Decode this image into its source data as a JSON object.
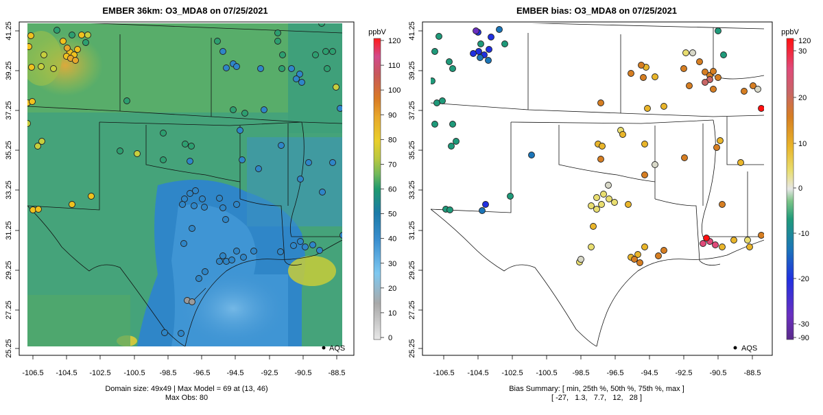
{
  "left_panel": {
    "title": "EMBER 36km: O3_MDA8 on 07/25/2021",
    "unit": "ppbV",
    "footer_line1": "Domain size: 49x49 | Max Model = 69 at (13, 46)",
    "footer_line2": "Max Obs: 80",
    "legend_label": "AQS",
    "colorbar_ticks": [
      "120",
      "110",
      "100",
      "90",
      "80",
      "70",
      "60",
      "50",
      "40",
      "30",
      "20",
      "10",
      "0"
    ],
    "colorbar_values": [
      120,
      110,
      100,
      90,
      80,
      70,
      60,
      50,
      40,
      30,
      20,
      10,
      0
    ],
    "colorbar_range": [
      0,
      120
    ]
  },
  "right_panel": {
    "title": "EMBER bias: O3_MDA8 on 07/25/2021",
    "unit": "ppbV",
    "footer_line1": "Bias Summary: [ min, 25th %, 50th %, 75th %, max ]",
    "footer_line2": "[ -27,   1.3,   7.7,   12,   28 ]",
    "legend_label": "AQS",
    "colorbar_ticks": [
      "120",
      "30",
      "20",
      "10",
      "0",
      "-10",
      "-20",
      "-30",
      "-90"
    ]
  },
  "axes": {
    "x_ticks": [
      "-106.5",
      "-104.5",
      "-102.5",
      "-100.5",
      "-98.5",
      "-96.5",
      "-94.5",
      "-92.5",
      "-90.5",
      "-88.5"
    ],
    "y_ticks": [
      "41.25",
      "39.25",
      "37.25",
      "35.25",
      "33.25",
      "31.25",
      "29.25",
      "27.25",
      "25.25"
    ],
    "x_range": [
      -107.5,
      -88.0
    ],
    "y_range": [
      25.25,
      41.25
    ]
  },
  "bias_summary": {
    "min": -27,
    "p25": 1.3,
    "p50": 7.7,
    "p75": 12,
    "max": 28
  },
  "colors": {
    "model_bg": "#4fa06e",
    "frame": "#000000"
  }
}
